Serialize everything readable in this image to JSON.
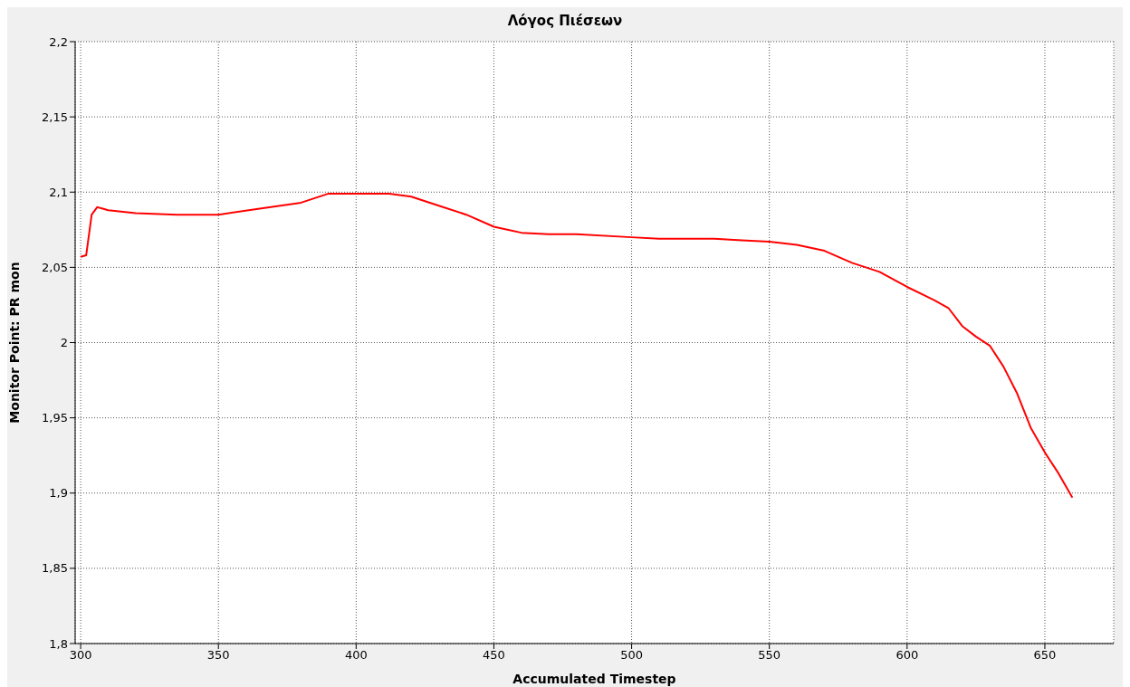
{
  "chart_data": {
    "type": "line",
    "title": "Λόγος Πιέσεων",
    "xlabel": "Accumulated Timestep",
    "ylabel": "Monitor Point: PR mon",
    "x": [
      300,
      302,
      304,
      306,
      308,
      310,
      320,
      335,
      350,
      365,
      380,
      390,
      400,
      412,
      420,
      430,
      440,
      450,
      460,
      470,
      480,
      500,
      510,
      520,
      530,
      540,
      550,
      560,
      570,
      580,
      590,
      600,
      610,
      615,
      620,
      625,
      630,
      635,
      640,
      645,
      650,
      655,
      660
    ],
    "series": [
      {
        "color": "#ff0000",
        "values": [
          2.057,
          2.058,
          2.085,
          2.09,
          2.089,
          2.088,
          2.086,
          2.085,
          2.085,
          2.089,
          2.093,
          2.099,
          2.099,
          2.099,
          2.097,
          2.091,
          2.085,
          2.077,
          2.073,
          2.072,
          2.072,
          2.07,
          2.069,
          2.069,
          2.069,
          2.068,
          2.067,
          2.065,
          2.061,
          2.053,
          2.047,
          2.037,
          2.028,
          2.023,
          2.011,
          2.004,
          1.998,
          1.984,
          1.966,
          1.943,
          1.927,
          1.913,
          1.897
        ]
      }
    ],
    "xlim": [
      298,
      675
    ],
    "xticks": [
      300,
      350,
      400,
      450,
      500,
      550,
      600,
      650
    ],
    "ylim": [
      1.8,
      2.2
    ],
    "yticks": [
      {
        "value": 1.8,
        "label": "1,8"
      },
      {
        "value": 1.85,
        "label": "1,85"
      },
      {
        "value": 1.9,
        "label": "1,9"
      },
      {
        "value": 1.95,
        "label": "1,95"
      },
      {
        "value": 2,
        "label": "2"
      },
      {
        "value": 2.05,
        "label": "2,05"
      },
      {
        "value": 2.1,
        "label": "2,1"
      },
      {
        "value": 2.15,
        "label": "2,15"
      },
      {
        "value": 2.2,
        "label": "2,2"
      }
    ],
    "grid": true,
    "legend": false,
    "marker": "none",
    "line_style": "solid"
  }
}
